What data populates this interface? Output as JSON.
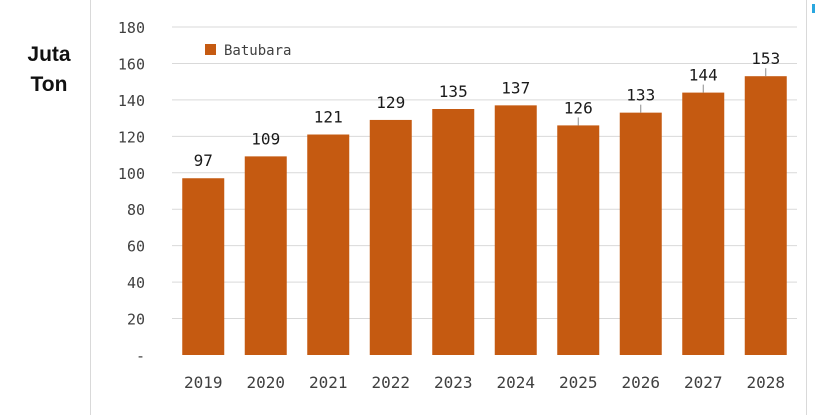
{
  "y_title": {
    "line1": "Juta",
    "line2": "Ton"
  },
  "colors": {
    "bar": "#C55A11",
    "grid": "#d9d9d9",
    "text": "#404040"
  },
  "chart_data": {
    "type": "bar",
    "categories": [
      "2019",
      "2020",
      "2021",
      "2022",
      "2023",
      "2024",
      "2025",
      "2026",
      "2027",
      "2028"
    ],
    "series": [
      {
        "name": "Batubara",
        "values": [
          97,
          109,
          121,
          129,
          135,
          137,
          126,
          133,
          144,
          153
        ],
        "color": "#C55A11"
      }
    ],
    "data_labels": [
      "97",
      "109",
      "121",
      "129",
      "135",
      "137",
      "126",
      "133",
      "144",
      "153"
    ],
    "y_ticks": [
      "-",
      "20",
      "40",
      "60",
      "80",
      "100",
      "120",
      "140",
      "160",
      "180"
    ],
    "ylim": [
      0,
      180
    ],
    "ylabel": "Juta Ton",
    "grid": true,
    "legend_position": "top-left"
  }
}
